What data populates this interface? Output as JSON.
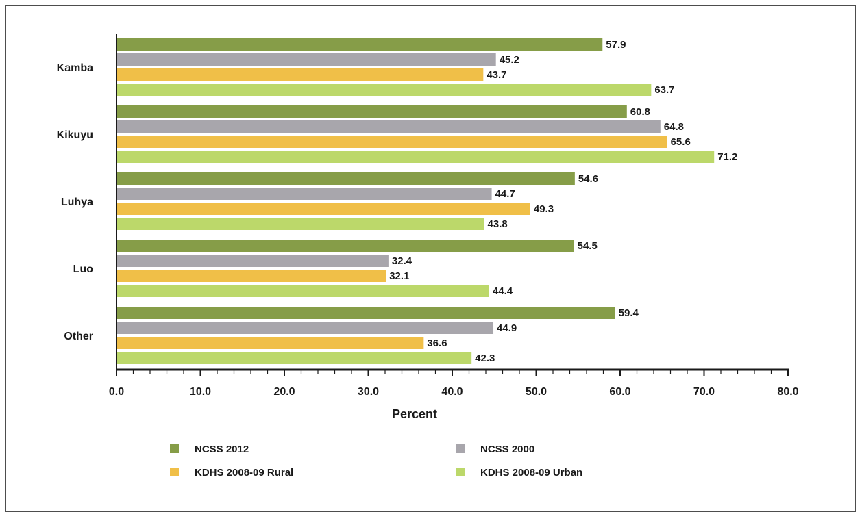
{
  "chart_data": {
    "type": "bar",
    "orientation": "horizontal",
    "categories": [
      "Kamba",
      "Kikuyu",
      "Luhya",
      "Luo",
      "Other"
    ],
    "series": [
      {
        "name": "NCSS 2012",
        "color": "#869d48",
        "values": [
          57.9,
          60.8,
          54.6,
          54.5,
          59.4
        ]
      },
      {
        "name": "NCSS 2000",
        "color": "#a8a6ac",
        "values": [
          45.2,
          64.8,
          44.7,
          32.4,
          44.9
        ]
      },
      {
        "name": "KDHS 2008-09 Rural",
        "color": "#f0bf48",
        "values": [
          43.7,
          65.6,
          49.3,
          32.1,
          36.6
        ]
      },
      {
        "name": "KDHS 2008-09 Urban",
        "color": "#bcd86a",
        "values": [
          63.7,
          71.2,
          43.8,
          44.4,
          42.3
        ]
      }
    ],
    "xlabel": "Percent",
    "xlim": [
      0,
      80
    ],
    "xticks": [
      "0.0",
      "10.0",
      "20.0",
      "30.0",
      "40.0",
      "50.0",
      "60.0",
      "70.0",
      "80.0"
    ],
    "grid": false,
    "legend_position": "bottom"
  }
}
